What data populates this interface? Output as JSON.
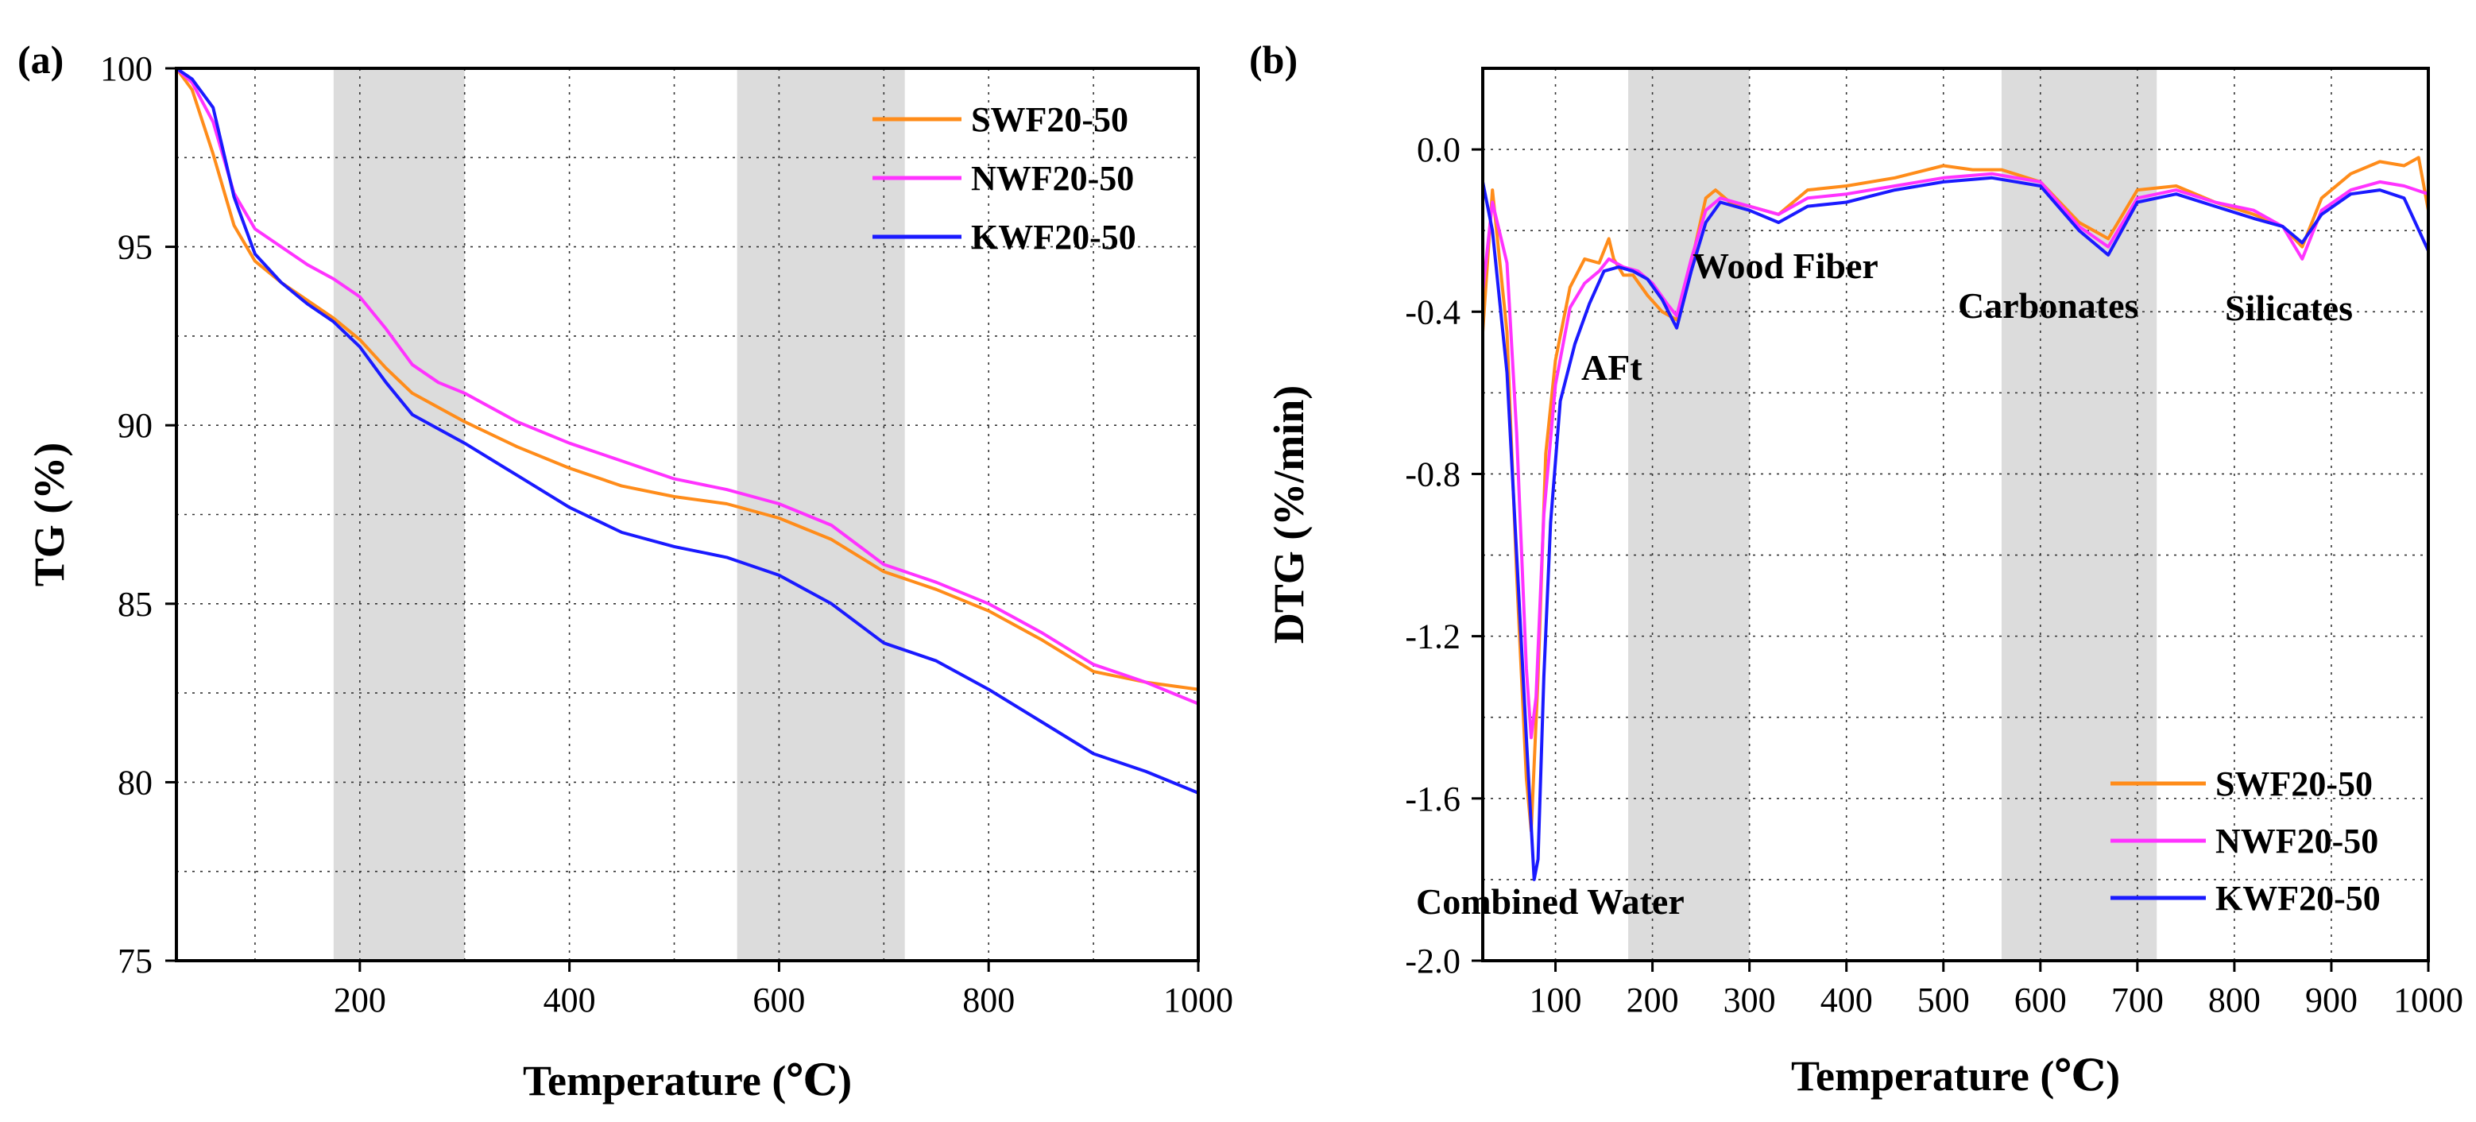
{
  "chart_data": [
    {
      "panel_label": "(a)",
      "type": "line",
      "xlabel": "Temperature (℃)",
      "ylabel": "TG (%)",
      "xlim": [
        25,
        1000
      ],
      "ylim": [
        75,
        100
      ],
      "xticks": [
        200,
        400,
        600,
        800,
        1000
      ],
      "xtick_labels": [
        "200",
        "400",
        "600",
        "800",
        "1000"
      ],
      "yticks": [
        75,
        80,
        85,
        90,
        95,
        100
      ],
      "ytick_labels": [
        "75",
        "80",
        "85",
        "90",
        "95",
        "100"
      ],
      "grid": "dotted",
      "shaded_ranges": [
        [
          175,
          300
        ],
        [
          560,
          720
        ]
      ],
      "legend_position": "top-right",
      "series": [
        {
          "name": "SWF20-50",
          "color": "#FF8C1A",
          "x": [
            25,
            40,
            60,
            80,
            100,
            125,
            150,
            175,
            200,
            225,
            250,
            275,
            300,
            350,
            400,
            450,
            500,
            550,
            600,
            650,
            700,
            750,
            800,
            850,
            900,
            950,
            1000
          ],
          "y": [
            100,
            99.4,
            97.6,
            95.6,
            94.6,
            94.0,
            93.5,
            93.0,
            92.4,
            91.6,
            90.9,
            90.5,
            90.1,
            89.4,
            88.8,
            88.3,
            88.0,
            87.8,
            87.4,
            86.8,
            85.9,
            85.4,
            84.8,
            84.0,
            83.1,
            82.8,
            82.6
          ]
        },
        {
          "name": "NWF20-50",
          "color": "#FF33FF",
          "x": [
            25,
            40,
            60,
            80,
            100,
            125,
            150,
            175,
            200,
            225,
            250,
            275,
            300,
            350,
            400,
            450,
            500,
            550,
            600,
            650,
            700,
            750,
            800,
            850,
            900,
            950,
            1000
          ],
          "y": [
            100,
            99.6,
            98.5,
            96.5,
            95.5,
            95.0,
            94.5,
            94.1,
            93.6,
            92.7,
            91.7,
            91.2,
            90.9,
            90.1,
            89.5,
            89.0,
            88.5,
            88.2,
            87.8,
            87.2,
            86.1,
            85.6,
            85.0,
            84.2,
            83.3,
            82.8,
            82.2
          ]
        },
        {
          "name": "KWF20-50",
          "color": "#1A1AFF",
          "x": [
            25,
            40,
            60,
            80,
            100,
            125,
            150,
            175,
            200,
            225,
            250,
            275,
            300,
            350,
            400,
            450,
            500,
            550,
            600,
            650,
            700,
            750,
            800,
            850,
            900,
            950,
            1000
          ],
          "y": [
            100,
            99.7,
            98.9,
            96.4,
            94.8,
            94.0,
            93.4,
            92.9,
            92.2,
            91.2,
            90.3,
            89.9,
            89.5,
            88.6,
            87.7,
            87.0,
            86.6,
            86.3,
            85.8,
            85.0,
            83.9,
            83.4,
            82.6,
            81.7,
            80.8,
            80.3,
            79.7
          ]
        }
      ]
    },
    {
      "panel_label": "(b)",
      "type": "line",
      "xlabel": "Temperature (℃)",
      "ylabel": "DTG (%/min)",
      "xlim": [
        25,
        1000
      ],
      "ylim": [
        -2.0,
        0.2
      ],
      "xticks": [
        100,
        200,
        300,
        400,
        500,
        600,
        700,
        800,
        900,
        1000
      ],
      "xtick_labels": [
        "100",
        "200",
        "300",
        "400",
        "500",
        "600",
        "700",
        "800",
        "900",
        "1000"
      ],
      "yticks": [
        -2.0,
        -1.6,
        -1.2,
        -0.8,
        -0.4,
        0.0
      ],
      "ytick_labels": [
        "-2.0",
        "-1.6",
        "-1.2",
        "-0.8",
        "-0.4",
        "0.0"
      ],
      "grid": "dotted",
      "shaded_ranges": [
        [
          175,
          300
        ],
        [
          560,
          720
        ]
      ],
      "legend_position": "bottom-right",
      "annotations": [
        {
          "text": "AFt",
          "x": 222,
          "y": -0.54
        },
        {
          "text": "Wood Fiber",
          "x": 355,
          "y": -0.3
        },
        {
          "text": "Carbonates",
          "x": 640,
          "y": -0.42
        },
        {
          "text": "Silicates",
          "x": 853,
          "y": -0.43
        },
        {
          "text": "Combined Water",
          "x": 170,
          "y": -1.9
        }
      ],
      "series": [
        {
          "name": "SWF20-50",
          "color": "#FF8C1A",
          "x": [
            25,
            35,
            50,
            60,
            70,
            75,
            82,
            90,
            100,
            115,
            130,
            145,
            155,
            160,
            170,
            180,
            195,
            210,
            225,
            240,
            255,
            265,
            280,
            300,
            330,
            360,
            400,
            450,
            500,
            530,
            560,
            600,
            640,
            670,
            700,
            740,
            780,
            820,
            850,
            870,
            890,
            920,
            950,
            975,
            990,
            1000
          ],
          "y": [
            -0.45,
            -0.1,
            -0.45,
            -1.05,
            -1.55,
            -1.68,
            -1.3,
            -0.75,
            -0.52,
            -0.34,
            -0.27,
            -0.28,
            -0.22,
            -0.27,
            -0.31,
            -0.31,
            -0.36,
            -0.4,
            -0.42,
            -0.28,
            -0.12,
            -0.1,
            -0.13,
            -0.14,
            -0.16,
            -0.1,
            -0.09,
            -0.07,
            -0.04,
            -0.05,
            -0.05,
            -0.08,
            -0.18,
            -0.22,
            -0.1,
            -0.09,
            -0.13,
            -0.16,
            -0.19,
            -0.24,
            -0.12,
            -0.06,
            -0.03,
            -0.04,
            -0.02,
            -0.15
          ]
        },
        {
          "name": "NWF20-50",
          "color": "#FF33FF",
          "x": [
            25,
            35,
            50,
            60,
            70,
            75,
            80,
            88,
            100,
            115,
            130,
            145,
            155,
            170,
            185,
            200,
            215,
            225,
            240,
            255,
            270,
            300,
            330,
            360,
            400,
            450,
            500,
            550,
            600,
            640,
            670,
            700,
            740,
            780,
            820,
            850,
            870,
            890,
            920,
            950,
            975,
            1000
          ],
          "y": [
            -0.35,
            -0.13,
            -0.28,
            -0.7,
            -1.28,
            -1.45,
            -1.35,
            -0.9,
            -0.58,
            -0.39,
            -0.33,
            -0.3,
            -0.27,
            -0.29,
            -0.3,
            -0.33,
            -0.38,
            -0.41,
            -0.27,
            -0.15,
            -0.12,
            -0.14,
            -0.16,
            -0.12,
            -0.11,
            -0.09,
            -0.07,
            -0.06,
            -0.08,
            -0.19,
            -0.24,
            -0.12,
            -0.1,
            -0.13,
            -0.15,
            -0.19,
            -0.27,
            -0.15,
            -0.1,
            -0.08,
            -0.09,
            -0.11
          ]
        },
        {
          "name": "KWF20-50",
          "color": "#1A1AFF",
          "x": [
            25,
            35,
            50,
            60,
            70,
            78,
            82,
            88,
            95,
            105,
            120,
            135,
            150,
            165,
            180,
            195,
            210,
            225,
            240,
            255,
            270,
            300,
            330,
            360,
            400,
            450,
            500,
            550,
            600,
            640,
            670,
            700,
            740,
            780,
            820,
            850,
            870,
            890,
            920,
            950,
            975,
            1000
          ],
          "y": [
            -0.08,
            -0.2,
            -0.55,
            -1.0,
            -1.45,
            -1.8,
            -1.75,
            -1.3,
            -0.92,
            -0.62,
            -0.48,
            -0.38,
            -0.3,
            -0.29,
            -0.3,
            -0.32,
            -0.37,
            -0.44,
            -0.3,
            -0.18,
            -0.13,
            -0.15,
            -0.18,
            -0.14,
            -0.13,
            -0.1,
            -0.08,
            -0.07,
            -0.09,
            -0.2,
            -0.26,
            -0.13,
            -0.11,
            -0.14,
            -0.17,
            -0.19,
            -0.23,
            -0.16,
            -0.11,
            -0.1,
            -0.12,
            -0.25
          ]
        }
      ]
    }
  ]
}
